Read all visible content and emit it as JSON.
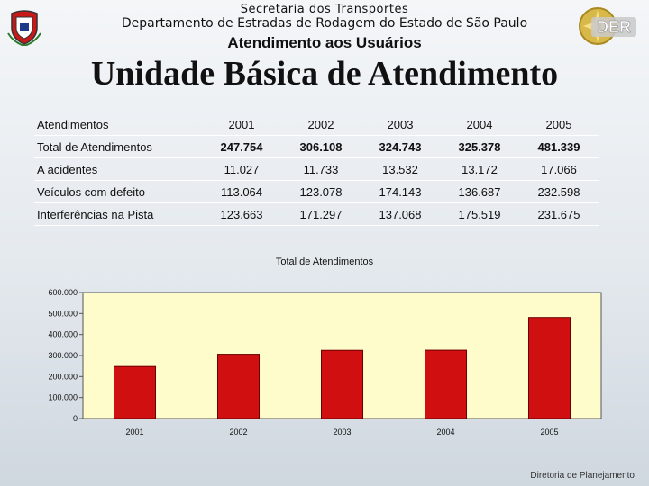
{
  "header": {
    "secretaria": "Secretaria dos Transportes",
    "departamento": "Departamento de Estradas de Rodagem do Estado de São Paulo",
    "subtitle": "Atendimento aos Usuários",
    "title": "Unidade Básica de Atendimento",
    "right_logo_text": "DER"
  },
  "table": {
    "header_label": "Atendimentos",
    "years": [
      "2001",
      "2002",
      "2003",
      "2004",
      "2005"
    ],
    "rows": [
      {
        "label": "Total de Atendimentos",
        "values": [
          "247.754",
          "306.108",
          "324.743",
          "325.378",
          "481.339"
        ]
      },
      {
        "label": "A acidentes",
        "values": [
          "11.027",
          "11.733",
          "13.532",
          "13.172",
          "17.066"
        ]
      },
      {
        "label": "Veículos com defeito",
        "values": [
          "113.064",
          "123.078",
          "174.143",
          "136.687",
          "232.598"
        ]
      },
      {
        "label": "Interferências na Pista",
        "values": [
          "123.663",
          "171.297",
          "137.068",
          "175.519",
          "231.675"
        ]
      }
    ]
  },
  "chart_data": {
    "type": "bar",
    "title": "Total de Atendimentos",
    "categories": [
      "2001",
      "2002",
      "2003",
      "2004",
      "2005"
    ],
    "values": [
      247754,
      306108,
      324743,
      325378,
      481339
    ],
    "ylim": [
      0,
      600000
    ],
    "yticks": [
      "0",
      "100.000",
      "200.000",
      "300.000",
      "400.000",
      "500.000",
      "600.000"
    ],
    "grid": false,
    "legend": "none",
    "bar_color": "#d01010",
    "plot_background": "#fffccc"
  },
  "footer": "Diretoria de Planejamento"
}
